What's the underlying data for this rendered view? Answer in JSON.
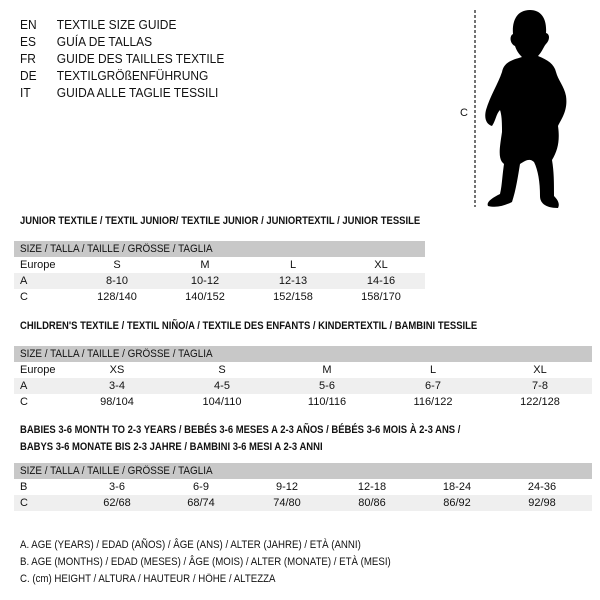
{
  "languages": [
    {
      "code": "EN",
      "text": "TEXTILE SIZE GUIDE"
    },
    {
      "code": "ES",
      "text": "GUÍA DE TALLAS"
    },
    {
      "code": "FR",
      "text": "GUIDE DES TAILLES TEXTILE"
    },
    {
      "code": "DE",
      "text": "TEXTILGRÖßENFÜHRUNG"
    },
    {
      "code": "IT",
      "text": "GUIDA ALLE TAGLIE TESSILI"
    }
  ],
  "figure": {
    "measure_label": "C"
  },
  "junior": {
    "title": "JUNIOR TEXTILE / TEXTIL JUNIOR/ TEXTILE JUNIOR / JUNIORTEXTIL / JUNIOR TESSILE",
    "header": "SIZE / TALLA / TAILLE / GRÖSSE / TAGLIA",
    "rows": [
      {
        "label": "Europe",
        "values": [
          "S",
          "M",
          "L",
          "XL"
        ]
      },
      {
        "label": "A",
        "values": [
          "8-10",
          "10-12",
          "12-13",
          "14-16"
        ]
      },
      {
        "label": "C",
        "values": [
          "128/140",
          "140/152",
          "152/158",
          "158/170"
        ]
      }
    ]
  },
  "children": {
    "title": "CHILDREN'S TEXTILE / TEXTIL NIÑO/A / TEXTILE DES ENFANTS / KINDERTEXTIL / BAMBINI TESSILE",
    "header": "SIZE / TALLA / TAILLE / GRÖSSE / TAGLIA",
    "rows": [
      {
        "label": "Europe",
        "values": [
          "XS",
          "S",
          "M",
          "L",
          "XL"
        ]
      },
      {
        "label": "A",
        "values": [
          "3-4",
          "4-5",
          "5-6",
          "6-7",
          "7-8"
        ]
      },
      {
        "label": "C",
        "values": [
          "98/104",
          "104/110",
          "110/116",
          "116/122",
          "122/128"
        ]
      }
    ]
  },
  "babies": {
    "title_line1": "BABIES 3-6 MONTH TO 2-3 YEARS / BEBÉS 3-6 MESES A 2-3 AÑOS / BÉBÉS 3-6 MOIS À 2-3 ANS /",
    "title_line2": "BABYS 3-6 MONATE BIS 2-3 JAHRE / BAMBINI 3-6 MESI A 2-3 ANNI",
    "header": "SIZE / TALLA / TAILLE / GRÖSSE / TAGLIA",
    "rows": [
      {
        "label": "B",
        "values": [
          "3-6",
          "6-9",
          "9-12",
          "12-18",
          "18-24",
          "24-36"
        ]
      },
      {
        "label": "C",
        "values": [
          "62/68",
          "68/74",
          "74/80",
          "80/86",
          "86/92",
          "92/98"
        ]
      }
    ]
  },
  "legend": [
    "A. AGE (YEARS) / EDAD (AÑOS) / ÂGE (ANS) / ALTER (JAHRE) / ETÀ (ANNI)",
    "B. AGE (MONTHS) / EDAD (MESES) / ÂGE (MOIS) / ALTER (MONATE) / ETÀ (MESI)",
    "C. (cm) HEIGHT / ALTURA / HAUTEUR / HÖHE / ALTEZZA"
  ]
}
